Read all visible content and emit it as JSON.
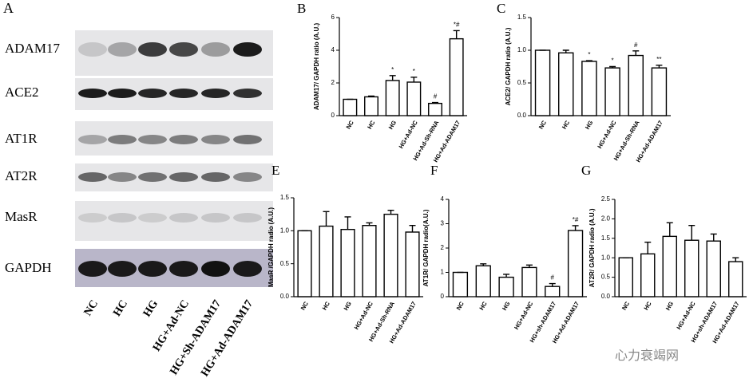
{
  "blot": {
    "label": "A",
    "rows": [
      "ADAM17",
      "ACE2",
      "AT1R",
      "AT2R",
      "MasR",
      "GAPDH"
    ],
    "lanes": [
      "NC",
      "HC",
      "HG",
      "HG+Ad-NC",
      "HG+Sh-ADAM17",
      "HG+Ad-ADAM17"
    ]
  },
  "watermark": "心力衰竭网",
  "chart_data": [
    {
      "type": "bar",
      "label": "B",
      "ylabel": "ADAM17/ GAPDH ratio (A.U.)",
      "categories": [
        "NC",
        "HC",
        "HG",
        "HG+Ad-NC",
        "HG+Ad-Sh-RNA",
        "HG+Ad-ADAM17"
      ],
      "values": [
        1.0,
        1.15,
        2.15,
        2.05,
        0.75,
        4.7
      ],
      "errors": [
        0,
        0.05,
        0.3,
        0.3,
        0.05,
        0.5
      ],
      "annotations": [
        null,
        null,
        "*",
        "*",
        "#",
        "*#"
      ],
      "ylim": [
        0,
        6
      ],
      "yticks": [
        0,
        2,
        4,
        6
      ]
    },
    {
      "type": "bar",
      "label": "C",
      "ylabel": "ACE2/ GAPDH ratio (A.U.)",
      "categories": [
        "NC",
        "HC",
        "HG",
        "HG+Ad-NC",
        "HG+Ad-Sh-RNA",
        "HG+Ad-ADAM17"
      ],
      "values": [
        1.0,
        0.96,
        0.83,
        0.73,
        0.92,
        0.73
      ],
      "errors": [
        0,
        0.04,
        0.01,
        0.02,
        0.07,
        0.04
      ],
      "annotations": [
        null,
        null,
        "*",
        "*",
        "#",
        "**"
      ],
      "ylim": [
        0,
        1.5
      ],
      "yticks": [
        {
          "value": 0,
          "label": "0.0"
        },
        0.5,
        {
          "value": 1,
          "label": "1.0"
        },
        1.5
      ]
    },
    {
      "type": "bar",
      "label": "E",
      "ylabel": "MasR /GAPDH radio (A.U.)",
      "categories": [
        "NC",
        "HC",
        "HG",
        "HG+Ad-NC",
        "HG+Ad-Sh-RNA",
        "HG+Ad-ADAM17"
      ],
      "values": [
        1.0,
        1.07,
        1.02,
        1.08,
        1.25,
        0.98
      ],
      "errors": [
        0,
        0.22,
        0.19,
        0.04,
        0.06,
        0.1
      ],
      "annotations": [
        null,
        null,
        null,
        null,
        null,
        null
      ],
      "ylim": [
        0,
        1.5
      ],
      "yticks": [
        {
          "value": 0,
          "label": "0.0"
        },
        0.5,
        {
          "value": 1,
          "label": "1.0"
        },
        1.5
      ]
    },
    {
      "type": "bar",
      "label": "F",
      "ylabel": "AT1R/ GAPDH radio(A.U.)",
      "categories": [
        "NC",
        "HC",
        "HG",
        "HG+Ad-NC",
        "HG+sh-ADAM17",
        "HG+Ad-ADAM17"
      ],
      "values": [
        1.0,
        1.27,
        0.8,
        1.2,
        0.42,
        2.72
      ],
      "errors": [
        0,
        0.08,
        0.12,
        0.1,
        0.12,
        0.2
      ],
      "annotations": [
        null,
        null,
        null,
        null,
        "#",
        "*#"
      ],
      "ylim": [
        0,
        4
      ],
      "yticks": [
        0,
        1,
        2,
        3,
        4
      ]
    },
    {
      "type": "bar",
      "label": "G",
      "ylabel": "AT2R/ GAPDH radio (A.U.)",
      "categories": [
        "NC",
        "HC",
        "HG",
        "HG+Ad-NC",
        "HG+sh-ADAM17",
        "HG+Ad-ADAM17"
      ],
      "values": [
        1.0,
        1.1,
        1.55,
        1.45,
        1.43,
        0.9
      ],
      "errors": [
        0,
        0.3,
        0.35,
        0.38,
        0.18,
        0.1
      ],
      "annotations": [
        null,
        null,
        null,
        null,
        null,
        null
      ],
      "ylim": [
        0,
        2.5
      ],
      "yticks": [
        {
          "value": 0,
          "label": "0.0"
        },
        0.5,
        {
          "value": 1,
          "label": "1.0"
        },
        1.5,
        {
          "value": 2,
          "label": "2.0"
        },
        2.5
      ]
    }
  ]
}
